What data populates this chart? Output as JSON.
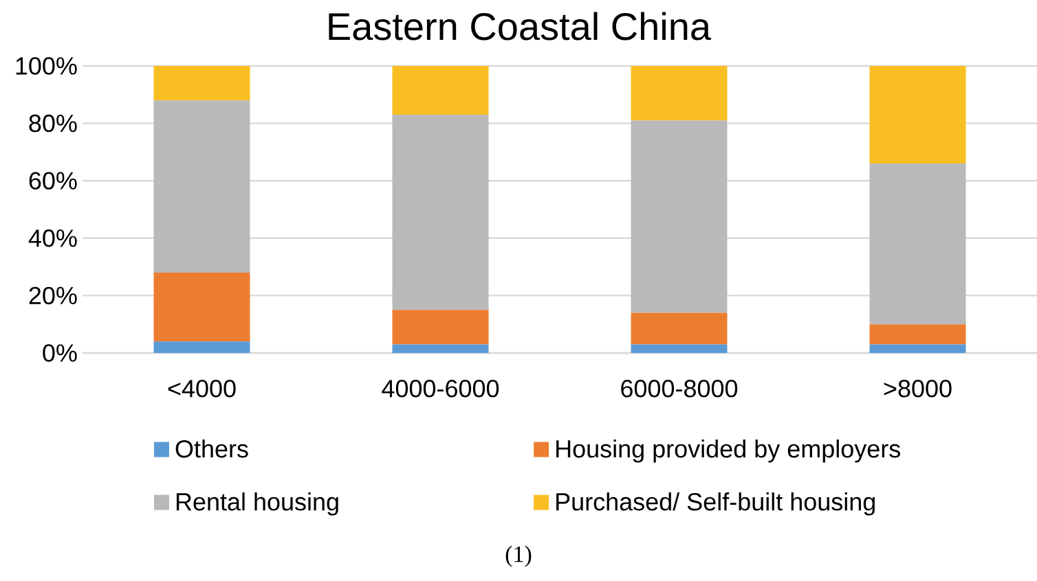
{
  "chart_data": {
    "type": "bar",
    "title": "Eastern Coastal China",
    "categories": [
      "<4000",
      "4000-6000",
      "6000-8000",
      ">8000"
    ],
    "stacked": true,
    "series": [
      {
        "name": "Others",
        "color": "#5b9bd5",
        "values": [
          4,
          3,
          3,
          3
        ]
      },
      {
        "name": "Housing provided by employers",
        "color": "#ed7d31",
        "values": [
          24,
          12,
          11,
          7
        ]
      },
      {
        "name": "Rental housing",
        "color": "#b9b9b9",
        "values": [
          60,
          68,
          67,
          56
        ]
      },
      {
        "name": "Purchased/ Self-built housing",
        "color": "#f9bf22",
        "values": [
          12,
          17,
          19,
          34
        ]
      }
    ],
    "ylim": [
      0,
      100
    ],
    "yticks": [
      {
        "value": 0,
        "label": "0%"
      },
      {
        "value": 20,
        "label": "20%"
      },
      {
        "value": 40,
        "label": "40%"
      },
      {
        "value": 60,
        "label": "60%"
      },
      {
        "value": 80,
        "label": "80%"
      },
      {
        "value": 100,
        "label": "100%"
      }
    ],
    "grid": "y",
    "legend": "bottom",
    "annotations": [
      "(1)"
    ]
  }
}
